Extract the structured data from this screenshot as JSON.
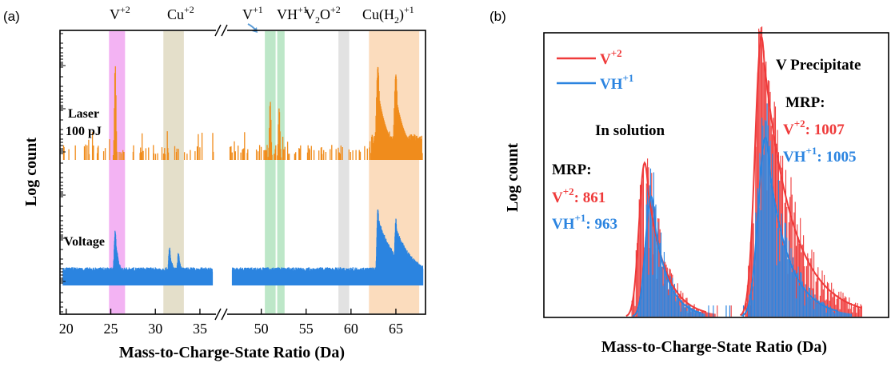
{
  "colors": {
    "laser": "#f08c1c",
    "voltage": "#2b84e0",
    "v2_series": "#ef3a3a",
    "vh1_series": "#2b84e0",
    "band_v2": "#f3b3f3",
    "band_cu2": "#e4dfca",
    "band_v1": "#bde7c8",
    "band_v2o": "#e2e2e2",
    "band_cuh2": "#fbdcbd"
  },
  "chart_data": [
    {
      "type": "line",
      "panel_label": "(a)",
      "xlabel": "Mass-to-Charge-State Ratio (Da)",
      "ylabel": "Log count",
      "x_axis": "broken",
      "x_segments": [
        {
          "range": [
            19.3,
            36.8
          ],
          "ticks": [
            "20",
            "25",
            "30",
            "35"
          ]
        },
        {
          "range": [
            46.2,
            68.3
          ],
          "ticks": [
            "50",
            "55",
            "60",
            "65"
          ]
        }
      ],
      "ion_bands": [
        {
          "label": "V+2",
          "from": 24.8,
          "to": 26.6,
          "color_key": "band_v2"
        },
        {
          "label": "Cu+2",
          "from": 30.9,
          "to": 33.2,
          "color_key": "band_cu2"
        },
        {
          "label": "V+1 / VH+1",
          "from": 50.4,
          "to": 52.6,
          "color_key": "band_v1"
        },
        {
          "label": "V2O+2",
          "from": 58.6,
          "to": 59.8,
          "color_key": "band_v2o"
        },
        {
          "label": "Cu(H2)+1",
          "from": 62.0,
          "to": 67.6,
          "color_key": "band_cuh2"
        }
      ],
      "series": [
        {
          "name": "Laser 100 pJ",
          "peaks": [
            {
              "x": 25.5,
              "rel_height": 1.0
            },
            {
              "x": 51.0,
              "rel_height": 0.62
            },
            {
              "x": 52.0,
              "rel_height": 0.55
            },
            {
              "x": 63.0,
              "rel_height": 0.97
            },
            {
              "x": 65.0,
              "rel_height": 0.89
            }
          ]
        },
        {
          "name": "Voltage",
          "peaks": [
            {
              "x": 25.5,
              "rel_height": 0.55
            },
            {
              "x": 31.6,
              "rel_height": 0.36
            },
            {
              "x": 32.6,
              "rel_height": 0.3
            },
            {
              "x": 63.0,
              "rel_height": 0.82
            },
            {
              "x": 65.0,
              "rel_height": 0.68
            }
          ]
        }
      ]
    },
    {
      "type": "line",
      "panel_label": "(b)",
      "xlabel": "Mass-to-Charge-State Ratio (Da)",
      "ylabel": "Log count",
      "legend_position": "top-left",
      "series": [
        {
          "name": "V+2",
          "color_key": "v2_series",
          "peaks": [
            {
              "region": "In solution",
              "rel_height": 0.55
            },
            {
              "region": "V Precipitate",
              "rel_height": 1.0
            }
          ]
        },
        {
          "name": "VH+1",
          "color_key": "vh1_series",
          "peaks": [
            {
              "region": "In solution",
              "rel_height": 0.43
            },
            {
              "region": "V Precipitate",
              "rel_height": 0.64
            }
          ]
        }
      ],
      "annotations": {
        "in_solution": {
          "title": "In solution",
          "mrp_label": "MRP:",
          "v2": "861",
          "vh1": "963"
        },
        "precipitate": {
          "title": "V Precipitate",
          "mrp_label": "MRP:",
          "v2": "1007",
          "vh1": "1005"
        }
      }
    }
  ]
}
